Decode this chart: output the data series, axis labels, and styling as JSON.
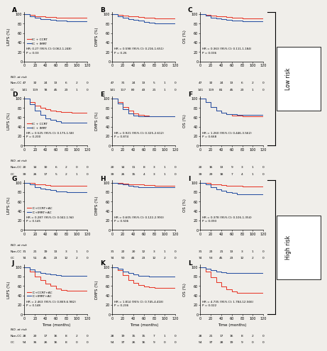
{
  "panels": [
    {
      "label": "A",
      "row": 0,
      "col": 0,
      "ylabel": "LRFS (%)",
      "legend": [
        "IC + CCRT",
        "IC + IMRT"
      ],
      "hr_text": "HR: 0.27 (95% CI: 0.062-1.248)\nP = 0.03",
      "red_x": [
        0,
        10,
        20,
        30,
        40,
        50,
        60,
        70,
        80,
        90,
        100,
        110,
        120
      ],
      "red_y": [
        100,
        98,
        96,
        95,
        94,
        94,
        93,
        93,
        93,
        92,
        92,
        92,
        92
      ],
      "blue_x": [
        0,
        10,
        20,
        30,
        40,
        50,
        60,
        70,
        80,
        90,
        100,
        110,
        120
      ],
      "blue_y": [
        100,
        96,
        92,
        90,
        89,
        88,
        87,
        86,
        85,
        85,
        85,
        85,
        85
      ],
      "at_risk_noncc": [
        47,
        32,
        24,
        13,
        6,
        2,
        0
      ],
      "at_risk_cc": [
        141,
        119,
        78,
        45,
        23,
        1,
        0
      ],
      "has_atrisk_label": true
    },
    {
      "label": "B",
      "row": 0,
      "col": 1,
      "ylabel": "DMFS (%)",
      "legend": null,
      "hr_text": "HR = 0.598 (95% CI: 0.216-1.651)\nP = 0.26",
      "red_x": [
        0,
        10,
        20,
        30,
        40,
        50,
        60,
        70,
        80,
        90,
        100,
        110,
        120
      ],
      "red_y": [
        100,
        99,
        97,
        96,
        95,
        94,
        93,
        92,
        91,
        91,
        91,
        91,
        91
      ],
      "blue_x": [
        0,
        10,
        20,
        30,
        40,
        50,
        60,
        70,
        80,
        90,
        100,
        110,
        120
      ],
      "blue_y": [
        100,
        96,
        92,
        90,
        88,
        86,
        84,
        82,
        80,
        80,
        80,
        80,
        80
      ],
      "at_risk_noncc": [
        47,
        31,
        24,
        13,
        5,
        1,
        0
      ],
      "at_risk_cc": [
        141,
        117,
        80,
        43,
        21,
        1,
        0
      ],
      "has_atrisk_label": false
    },
    {
      "label": "C",
      "row": 0,
      "col": 2,
      "ylabel": "OS (%)",
      "legend": null,
      "hr_text": "HR = 0.363 (95% CI: 0.111-1.184)\nP = 0.036",
      "red_x": [
        0,
        10,
        20,
        30,
        40,
        50,
        60,
        70,
        80,
        90,
        100,
        110,
        120
      ],
      "red_y": [
        100,
        99,
        97,
        96,
        95,
        94,
        93,
        92,
        91,
        91,
        91,
        91,
        91
      ],
      "blue_x": [
        0,
        10,
        20,
        30,
        40,
        50,
        60,
        70,
        80,
        90,
        100,
        110,
        120
      ],
      "blue_y": [
        100,
        97,
        93,
        91,
        89,
        88,
        87,
        86,
        85,
        85,
        85,
        85,
        85
      ],
      "at_risk_noncc": [
        47,
        32,
        24,
        13,
        6,
        2,
        0
      ],
      "at_risk_cc": [
        141,
        119,
        81,
        45,
        23,
        1,
        0
      ],
      "has_atrisk_label": false
    },
    {
      "label": "D",
      "row": 1,
      "col": 0,
      "ylabel": "LRFS (%)",
      "legend": [
        "IC + CCRT",
        "IC + IMRT"
      ],
      "hr_text": "HR = 0.525 (95% CI: 0.175-1.58)\nP = 0.200",
      "red_x": [
        0,
        10,
        20,
        30,
        40,
        50,
        60,
        70,
        80,
        90,
        100,
        110,
        120
      ],
      "red_y": [
        100,
        93,
        85,
        80,
        77,
        75,
        73,
        72,
        71,
        70,
        70,
        70,
        70
      ],
      "blue_x": [
        0,
        10,
        20,
        30,
        40,
        50,
        60,
        70,
        80,
        90,
        100,
        110,
        120
      ],
      "blue_y": [
        100,
        88,
        74,
        65,
        58,
        54,
        51,
        49,
        48,
        48,
        48,
        48,
        48
      ],
      "at_risk_noncc": [
        20,
        14,
        10,
        6,
        2,
        0,
        0
      ],
      "at_risk_cc": [
        39,
        26,
        17,
        5,
        2,
        1,
        0
      ],
      "has_atrisk_label": true
    },
    {
      "label": "E",
      "row": 1,
      "col": 1,
      "ylabel": "DMFS (%)",
      "legend": null,
      "hr_text": "HR = 0.921 (95% CI: 0.325-2.612)\nP = 0.874",
      "red_x": [
        0,
        10,
        20,
        30,
        40,
        50,
        60,
        70,
        80,
        90,
        100,
        110,
        120
      ],
      "red_y": [
        100,
        92,
        82,
        74,
        68,
        65,
        63,
        62,
        62,
        62,
        62,
        62,
        62
      ],
      "blue_x": [
        0,
        10,
        20,
        30,
        40,
        50,
        60,
        70,
        80,
        90,
        100,
        110,
        120
      ],
      "blue_y": [
        100,
        90,
        78,
        68,
        63,
        62,
        62,
        62,
        62,
        62,
        62,
        62,
        62
      ],
      "at_risk_noncc": [
        20,
        14,
        11,
        8,
        3,
        1,
        0
      ],
      "at_risk_cc": [
        39,
        26,
        15,
        4,
        3,
        1,
        0
      ],
      "has_atrisk_label": false
    },
    {
      "label": "F",
      "row": 1,
      "col": 2,
      "ylabel": "OS (%)",
      "legend": null,
      "hr_text": "HR = 1.260 (95% CI: 0.446-3.562)\nP = 0.668",
      "red_x": [
        0,
        10,
        20,
        30,
        40,
        50,
        60,
        80,
        90,
        100,
        110,
        120
      ],
      "red_y": [
        100,
        92,
        82,
        75,
        70,
        67,
        63,
        62,
        62,
        62,
        62,
        62
      ],
      "blue_x": [
        0,
        10,
        20,
        30,
        40,
        50,
        60,
        70,
        80,
        90,
        100,
        110,
        120
      ],
      "blue_y": [
        100,
        92,
        82,
        75,
        70,
        67,
        66,
        65,
        65,
        65,
        65,
        65,
        65
      ],
      "at_risk_noncc": [
        20,
        16,
        13,
        9,
        3,
        1,
        0
      ],
      "at_risk_cc": [
        39,
        29,
        18,
        7,
        4,
        1,
        0
      ],
      "has_atrisk_label": false
    },
    {
      "label": "G",
      "row": 2,
      "col": 0,
      "ylabel": "LRFS (%)",
      "legend": [
        "IC+CCRT+AC",
        "IC+IMRT+AC"
      ],
      "hr_text": "HR = 0.287 (95% CI: 0.042-1.94)\nP = 0.145",
      "red_x": [
        0,
        10,
        20,
        30,
        40,
        50,
        60,
        70,
        80,
        90,
        100,
        110,
        120
      ],
      "red_y": [
        100,
        99,
        97,
        96,
        95,
        94,
        94,
        93,
        93,
        93,
        93,
        93,
        93
      ],
      "blue_x": [
        0,
        10,
        20,
        30,
        40,
        50,
        60,
        70,
        80,
        90,
        100,
        110,
        120
      ],
      "blue_y": [
        100,
        96,
        91,
        88,
        86,
        84,
        82,
        81,
        80,
        80,
        80,
        80,
        80
      ],
      "at_risk_noncc": [
        31,
        21,
        19,
        13,
        3,
        1,
        0
      ],
      "at_risk_cc": [
        74,
        51,
        45,
        23,
        12,
        2,
        0
      ],
      "has_atrisk_label": true
    },
    {
      "label": "H",
      "row": 2,
      "col": 1,
      "ylabel": "DMFS (%)",
      "legend": null,
      "hr_text": "HR = 0.605 (95% CI: 0.122-2.993)\nP = 0.506",
      "red_x": [
        0,
        10,
        20,
        30,
        40,
        50,
        60,
        70,
        80,
        90,
        100,
        110,
        120
      ],
      "red_y": [
        100,
        99,
        98,
        97,
        96,
        96,
        95,
        95,
        94,
        94,
        94,
        94,
        94
      ],
      "blue_x": [
        0,
        10,
        20,
        30,
        40,
        50,
        60,
        70,
        80,
        90,
        100,
        110,
        120
      ],
      "blue_y": [
        100,
        98,
        96,
        94,
        92,
        91,
        91,
        90,
        90,
        90,
        90,
        90,
        90
      ],
      "at_risk_noncc": [
        31,
        22,
        20,
        12,
        3,
        1,
        0
      ],
      "at_risk_cc": [
        74,
        50,
        44,
        23,
        12,
        2,
        0
      ],
      "has_atrisk_label": false
    },
    {
      "label": "I",
      "row": 2,
      "col": 2,
      "ylabel": "OS (%)",
      "legend": null,
      "hr_text": "HR = 0.378 (95% CI: 0.106-1.354)\nP = 0.093",
      "red_x": [
        0,
        10,
        20,
        30,
        40,
        50,
        60,
        70,
        80,
        90,
        100,
        110,
        120
      ],
      "red_y": [
        100,
        99,
        97,
        96,
        95,
        94,
        93,
        93,
        92,
        92,
        92,
        92,
        92
      ],
      "blue_x": [
        0,
        10,
        20,
        30,
        40,
        50,
        60,
        70,
        80,
        90,
        100,
        110,
        120
      ],
      "blue_y": [
        100,
        96,
        90,
        86,
        83,
        80,
        78,
        76,
        75,
        75,
        75,
        75,
        75
      ],
      "at_risk_noncc": [
        31,
        23,
        21,
        13,
        3,
        1,
        0
      ],
      "at_risk_cc": [
        74,
        53,
        45,
        23,
        12,
        2,
        0
      ],
      "has_atrisk_label": false
    },
    {
      "label": "J",
      "row": 3,
      "col": 0,
      "ylabel": "LRFS (%)",
      "legend": [
        "IC+CCRT+AC",
        "IC+IMRT+AC"
      ],
      "hr_text": "HR = 2.463 (95% CI: 0.869-6.982)\nP = 0.148",
      "red_x": [
        0,
        10,
        20,
        30,
        40,
        50,
        60,
        70,
        80,
        90,
        100,
        110,
        120
      ],
      "red_y": [
        100,
        90,
        80,
        72,
        65,
        60,
        55,
        52,
        50,
        50,
        50,
        50,
        50
      ],
      "blue_x": [
        0,
        10,
        20,
        30,
        40,
        50,
        60,
        70,
        80,
        90,
        100,
        110,
        120
      ],
      "blue_y": [
        100,
        95,
        91,
        88,
        86,
        84,
        83,
        82,
        82,
        82,
        82,
        82,
        82
      ],
      "at_risk_noncc": [
        28,
        20,
        17,
        16,
        8,
        2,
        0
      ],
      "at_risk_cc": [
        54,
        36,
        26,
        16,
        8,
        0,
        0
      ],
      "has_atrisk_label": true
    },
    {
      "label": "K",
      "row": 3,
      "col": 1,
      "ylabel": "DMFS (%)",
      "legend": null,
      "hr_text": "HR = 1.814 (95% CI: 0.745-4.418)\nP = 0.236",
      "red_x": [
        0,
        10,
        20,
        30,
        40,
        50,
        60,
        70,
        80,
        90,
        100,
        110,
        120
      ],
      "red_y": [
        100,
        93,
        83,
        73,
        66,
        62,
        59,
        57,
        56,
        56,
        56,
        56,
        56
      ],
      "blue_x": [
        0,
        10,
        20,
        30,
        40,
        50,
        60,
        70,
        80,
        90,
        100,
        110,
        120
      ],
      "blue_y": [
        100,
        96,
        91,
        87,
        84,
        82,
        81,
        80,
        80,
        80,
        80,
        80,
        80
      ],
      "at_risk_noncc": [
        28,
        19,
        15,
        15,
        7,
        1,
        0
      ],
      "at_risk_cc": [
        54,
        37,
        26,
        16,
        9,
        0,
        0
      ],
      "has_atrisk_label": false
    },
    {
      "label": "L",
      "row": 3,
      "col": 2,
      "ylabel": "OS (%)",
      "legend": null,
      "hr_text": "HR = 4.735 (95% CI: 1.784-12.566)\nP = 0.022",
      "red_x": [
        0,
        10,
        20,
        30,
        40,
        50,
        60,
        70,
        80,
        90,
        100,
        110,
        120
      ],
      "red_y": [
        100,
        90,
        79,
        68,
        59,
        53,
        48,
        46,
        45,
        45,
        45,
        45,
        45
      ],
      "blue_x": [
        0,
        10,
        20,
        30,
        40,
        50,
        60,
        70,
        80,
        90,
        100,
        110,
        120
      ],
      "blue_y": [
        100,
        97,
        94,
        91,
        89,
        88,
        87,
        87,
        87,
        87,
        87,
        87,
        87
      ],
      "at_risk_noncc": [
        28,
        21,
        17,
        16,
        8,
        2,
        0
      ],
      "at_risk_cc": [
        54,
        37,
        28,
        19,
        9,
        0,
        0
      ],
      "has_atrisk_label": false
    }
  ],
  "red_color": "#e8392a",
  "blue_color": "#2952a3",
  "bg_color": "#f0eeea"
}
